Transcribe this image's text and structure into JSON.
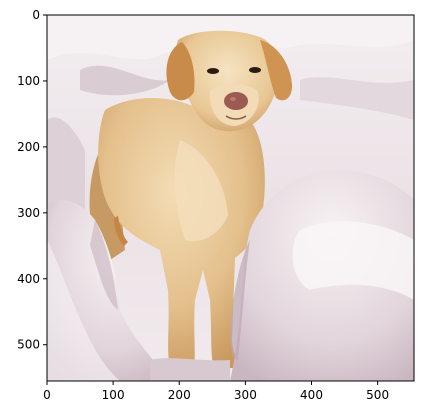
{
  "chart_data": {
    "type": "image",
    "xlim": [
      0,
      555
    ],
    "ylim": [
      555,
      0
    ],
    "x_ticks": [
      {
        "value": 0,
        "label": "0"
      },
      {
        "value": 100,
        "label": "100"
      },
      {
        "value": 200,
        "label": "200"
      },
      {
        "value": 300,
        "label": "300"
      },
      {
        "value": 400,
        "label": "400"
      },
      {
        "value": 500,
        "label": "500"
      }
    ],
    "y_ticks": [
      {
        "value": 0,
        "label": "0"
      },
      {
        "value": 100,
        "label": "100"
      },
      {
        "value": 200,
        "label": "200"
      },
      {
        "value": 300,
        "label": "300"
      },
      {
        "value": 400,
        "label": "400"
      },
      {
        "value": 500,
        "label": "500"
      }
    ],
    "grid": false
  },
  "colors": {
    "snow_light": "#f4eef0",
    "snow_mid": "#e6dade",
    "snow_shadow": "#cdbcc6",
    "snow_deep": "#b9a4b2",
    "fur_light": "#f0d8b0",
    "fur_mid": "#e1bd86",
    "fur_dark": "#c8945a",
    "ear": "#c88a48",
    "nose": "#9c5b52",
    "eye": "#2a1a12"
  }
}
